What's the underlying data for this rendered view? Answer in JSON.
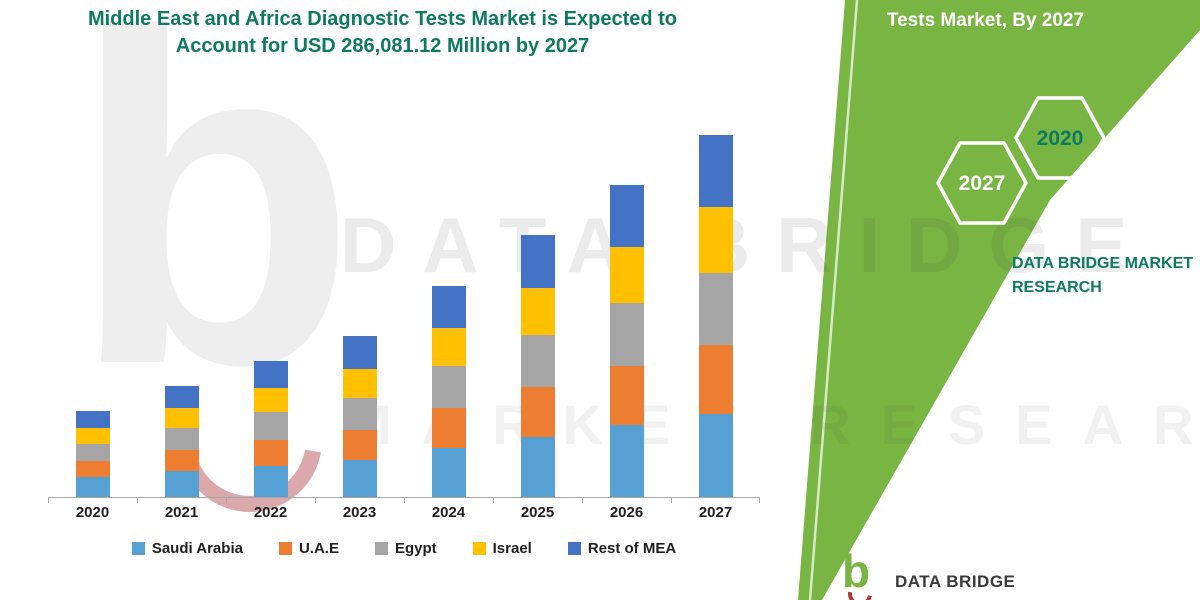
{
  "title": {
    "text": "Middle East and Africa Diagnostic Tests Market is Expected to Account for USD 286,081.12 Million by 2027",
    "color": "#0E7A5F"
  },
  "ribbon": {
    "color": "#79B543",
    "heading": "Tests Market, By 2027",
    "hexagons": [
      {
        "label": "2027",
        "text_color": "#FFFFFF"
      },
      {
        "label": "2020",
        "text_color": "#0E7A5F"
      }
    ],
    "brand_line1": "DATA BRIDGE MARKET",
    "brand_line2": "RESEARCH"
  },
  "watermark": {
    "letter": "b",
    "line1": "DATA BRIDGE",
    "line2": "MARKET RESEARCH"
  },
  "footer_logo": {
    "letter": "b",
    "brand": "DATA BRIDGE"
  },
  "chart_data": {
    "type": "bar",
    "stacked": true,
    "title": "Middle East and Africa Diagnostic Tests Market",
    "unit": "USD Million",
    "categories": [
      "2020",
      "2021",
      "2022",
      "2023",
      "2024",
      "2025",
      "2026",
      "2027"
    ],
    "series": [
      {
        "name": "Saudi Arabia",
        "color": "#56A0D3",
        "values": [
          15600,
          20200,
          24800,
          29200,
          38400,
          47600,
          56800,
          65800
        ]
      },
      {
        "name": "U.A.E",
        "color": "#ED7D31",
        "values": [
          12900,
          16700,
          20500,
          24100,
          31700,
          39300,
          46900,
          54400
        ]
      },
      {
        "name": "Egypt",
        "color": "#A5A5A5",
        "values": [
          13600,
          17600,
          21600,
          25400,
          33400,
          41400,
          49400,
          57200
        ]
      },
      {
        "name": "Israel",
        "color": "#FFC000",
        "values": [
          12200,
          15800,
          19400,
          22900,
          30100,
          37300,
          44500,
          51500
        ]
      },
      {
        "name": "Rest of MEA",
        "color": "#4472C4",
        "values": [
          13600,
          17600,
          21600,
          25400,
          33400,
          41400,
          49400,
          57181.12
        ]
      }
    ],
    "totals_note": "2027 total equals 286,081.12 USD Million as stated in title",
    "ylim": [
      0,
      300000
    ],
    "grid": false,
    "legend_position": "bottom"
  }
}
